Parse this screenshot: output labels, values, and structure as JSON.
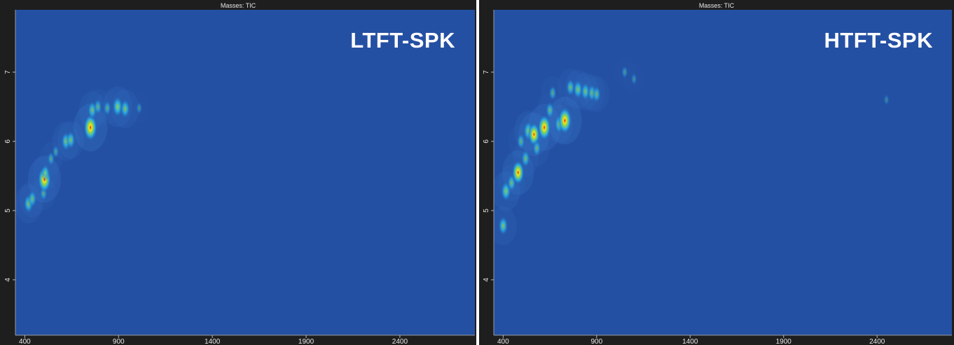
{
  "chart_data": [
    {
      "type": "heatmap",
      "title": "Masses: TIC",
      "label": "LTFT-SPK",
      "x_ticks": [
        "400",
        "900",
        "1400",
        "1900",
        "2400"
      ],
      "y_ticks": [
        "4",
        "5",
        "6",
        "7"
      ],
      "xlim": [
        350,
        2800
      ],
      "ylim": [
        3.2,
        7.9
      ],
      "background_color": "#2450a3",
      "colorscale": [
        "#2450a3",
        "#27a9e8",
        "#8fd34a",
        "#f5e21c",
        "#e0161c"
      ],
      "grid": false,
      "spots": [
        {
          "x": 420,
          "y": 5.1,
          "intensity": 0.55
        },
        {
          "x": 440,
          "y": 5.17,
          "intensity": 0.45
        },
        {
          "x": 500,
          "y": 5.25,
          "intensity": 0.3
        },
        {
          "x": 505,
          "y": 5.45,
          "intensity": 0.95
        },
        {
          "x": 510,
          "y": 5.55,
          "intensity": 0.4
        },
        {
          "x": 540,
          "y": 5.75,
          "intensity": 0.25
        },
        {
          "x": 565,
          "y": 5.85,
          "intensity": 0.2
        },
        {
          "x": 620,
          "y": 6.0,
          "intensity": 0.55
        },
        {
          "x": 645,
          "y": 6.02,
          "intensity": 0.5
        },
        {
          "x": 750,
          "y": 6.2,
          "intensity": 1.0
        },
        {
          "x": 760,
          "y": 6.45,
          "intensity": 0.5
        },
        {
          "x": 790,
          "y": 6.5,
          "intensity": 0.35
        },
        {
          "x": 840,
          "y": 6.48,
          "intensity": 0.3
        },
        {
          "x": 895,
          "y": 6.5,
          "intensity": 0.65
        },
        {
          "x": 935,
          "y": 6.47,
          "intensity": 0.55
        },
        {
          "x": 1010,
          "y": 6.48,
          "intensity": 0.12
        }
      ]
    },
    {
      "type": "heatmap",
      "title": "Masses: TIC",
      "label": "HTFT-SPK",
      "x_ticks": [
        "400",
        "900",
        "1400",
        "1900",
        "2400"
      ],
      "y_ticks": [
        "4",
        "5",
        "6",
        "7"
      ],
      "xlim": [
        350,
        2800
      ],
      "ylim": [
        3.2,
        7.9
      ],
      "background_color": "#2450a3",
      "colorscale": [
        "#2450a3",
        "#27a9e8",
        "#8fd34a",
        "#f5e21c",
        "#e0161c"
      ],
      "grid": false,
      "spots": [
        {
          "x": 400,
          "y": 4.78,
          "intensity": 0.55
        },
        {
          "x": 415,
          "y": 5.28,
          "intensity": 0.6
        },
        {
          "x": 445,
          "y": 5.4,
          "intensity": 0.45
        },
        {
          "x": 480,
          "y": 5.55,
          "intensity": 0.85
        },
        {
          "x": 495,
          "y": 6.0,
          "intensity": 0.35
        },
        {
          "x": 520,
          "y": 5.75,
          "intensity": 0.45
        },
        {
          "x": 535,
          "y": 6.15,
          "intensity": 0.6
        },
        {
          "x": 565,
          "y": 6.1,
          "intensity": 0.8
        },
        {
          "x": 580,
          "y": 5.9,
          "intensity": 0.4
        },
        {
          "x": 620,
          "y": 6.2,
          "intensity": 0.95
        },
        {
          "x": 650,
          "y": 6.45,
          "intensity": 0.4
        },
        {
          "x": 665,
          "y": 6.7,
          "intensity": 0.3
        },
        {
          "x": 700,
          "y": 6.25,
          "intensity": 0.55
        },
        {
          "x": 730,
          "y": 6.3,
          "intensity": 1.0
        },
        {
          "x": 760,
          "y": 6.78,
          "intensity": 0.45
        },
        {
          "x": 800,
          "y": 6.75,
          "intensity": 0.55
        },
        {
          "x": 840,
          "y": 6.72,
          "intensity": 0.5
        },
        {
          "x": 875,
          "y": 6.7,
          "intensity": 0.45
        },
        {
          "x": 900,
          "y": 6.68,
          "intensity": 0.4
        },
        {
          "x": 1050,
          "y": 7.0,
          "intensity": 0.15
        },
        {
          "x": 1100,
          "y": 6.9,
          "intensity": 0.1
        },
        {
          "x": 2450,
          "y": 6.6,
          "intensity": 0.05
        }
      ]
    }
  ]
}
